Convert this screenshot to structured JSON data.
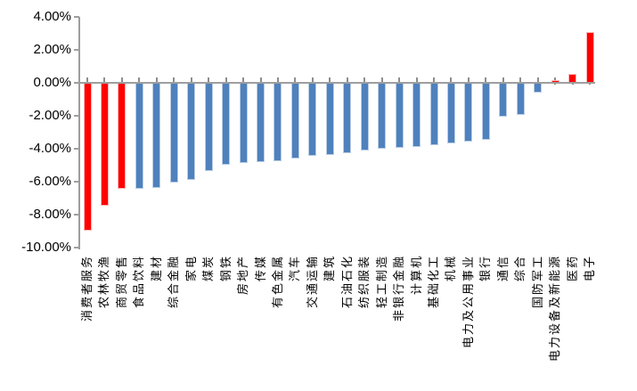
{
  "chart_data": {
    "type": "bar",
    "title": "",
    "xlabel": "",
    "ylabel": "",
    "ylim": [
      -10,
      4
    ],
    "grid": false,
    "legend": null,
    "y_ticks": [
      "4.00%",
      "2.00%",
      "0.00%",
      "-2.00%",
      "-4.00%",
      "-6.00%",
      "-8.00%",
      "-10.00%"
    ],
    "y_tick_values": [
      4,
      2,
      0,
      -2,
      -4,
      -6,
      -8,
      -10
    ],
    "categories": [
      "消费者服务",
      "农林牧渔",
      "商贸零售",
      "食品饮料",
      "建材",
      "综合金融",
      "家电",
      "煤炭",
      "钢铁",
      "房地产",
      "传媒",
      "有色金属",
      "汽车",
      "交通运输",
      "建筑",
      "石油石化",
      "纺织服装",
      "轻工制造",
      "非银行金融",
      "计算机",
      "基础化工",
      "机械",
      "电力及公用事业",
      "银行",
      "通信",
      "综合",
      "国防军工",
      "电力设备及新能源",
      "医药",
      "电子"
    ],
    "values": [
      -8.9,
      -7.4,
      -6.4,
      -6.4,
      -6.35,
      -6.0,
      -5.85,
      -5.3,
      -4.9,
      -4.8,
      -4.75,
      -4.7,
      -4.55,
      -4.4,
      -4.3,
      -4.2,
      -4.05,
      -3.95,
      -3.9,
      -3.85,
      -3.75,
      -3.6,
      -3.5,
      -3.4,
      -2.0,
      -1.9,
      -0.55,
      0.1,
      0.5,
      3.0
    ],
    "bar_colors": [
      "#ff0000",
      "#ff0000",
      "#ff0000",
      "#4f81bd",
      "#4f81bd",
      "#4f81bd",
      "#4f81bd",
      "#4f81bd",
      "#4f81bd",
      "#4f81bd",
      "#4f81bd",
      "#4f81bd",
      "#4f81bd",
      "#4f81bd",
      "#4f81bd",
      "#4f81bd",
      "#4f81bd",
      "#4f81bd",
      "#4f81bd",
      "#4f81bd",
      "#4f81bd",
      "#4f81bd",
      "#4f81bd",
      "#4f81bd",
      "#4f81bd",
      "#4f81bd",
      "#4f81bd",
      "#ff0000",
      "#ff0000",
      "#ff0000"
    ],
    "colors": {
      "highlight": "#ff0000",
      "default_bar": "#4f81bd",
      "axis": "#9e9e9e",
      "text": "#000000"
    }
  }
}
